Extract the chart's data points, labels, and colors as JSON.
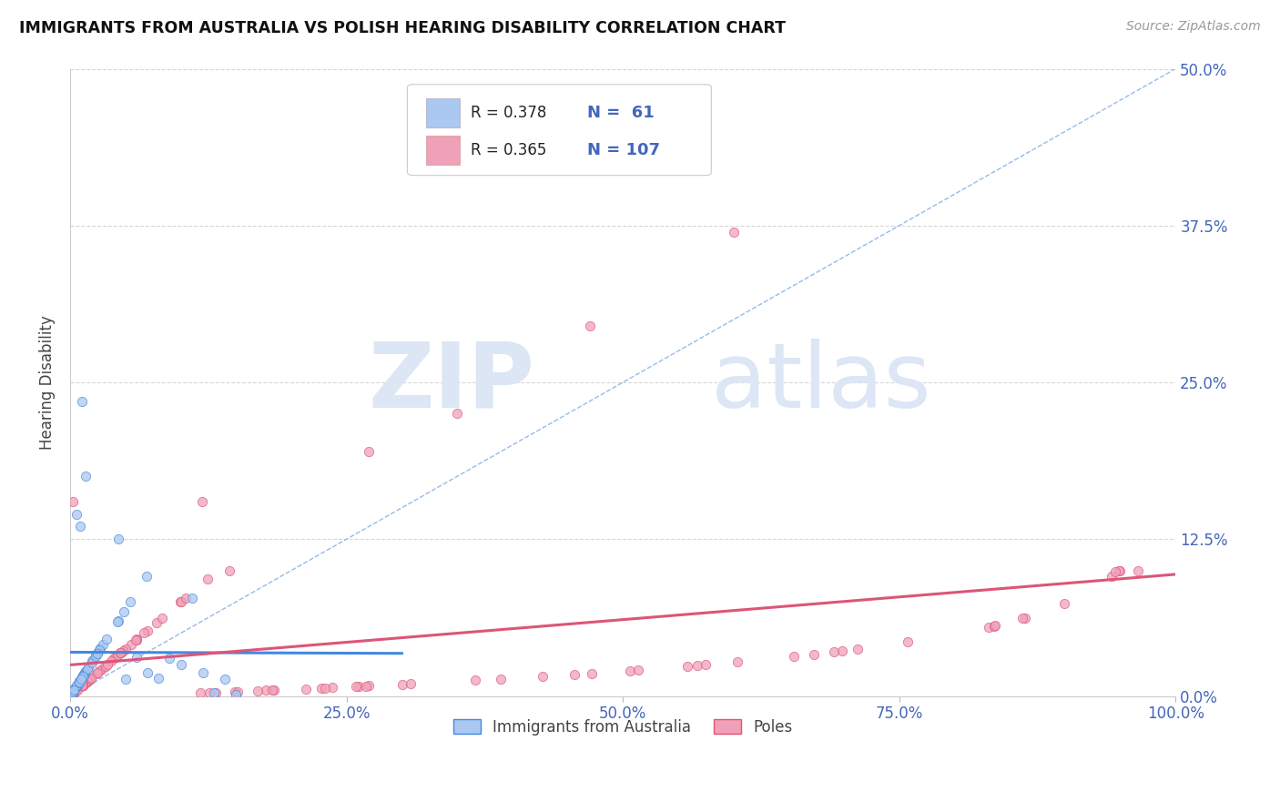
{
  "title": "IMMIGRANTS FROM AUSTRALIA VS POLISH HEARING DISABILITY CORRELATION CHART",
  "source": "Source: ZipAtlas.com",
  "ylabel": "Hearing Disability",
  "legend_label1": "Immigrants from Australia",
  "legend_label2": "Poles",
  "r1": 0.378,
  "n1": 61,
  "r2": 0.365,
  "n2": 107,
  "color1": "#aac8f0",
  "color2": "#f0a0b8",
  "line_color1": "#4488dd",
  "line_color2": "#dd5577",
  "ref_line_color": "#8ab4e8",
  "title_color": "#111111",
  "tick_color": "#4466bb",
  "background_color": "#ffffff",
  "watermark_zip": "ZIP",
  "watermark_atlas": "atlas",
  "xlim": [
    0.0,
    1.0
  ],
  "ylim": [
    0.0,
    0.5
  ],
  "yticks": [
    0.0,
    0.125,
    0.25,
    0.375,
    0.5
  ],
  "ytick_labels": [
    "0.0%",
    "12.5%",
    "25.0%",
    "37.5%",
    "50.0%"
  ],
  "xticks": [
    0.0,
    0.25,
    0.5,
    0.75,
    1.0
  ],
  "xtick_labels": [
    "0.0%",
    "25.0%",
    "50.0%",
    "75.0%",
    "100.0%"
  ]
}
